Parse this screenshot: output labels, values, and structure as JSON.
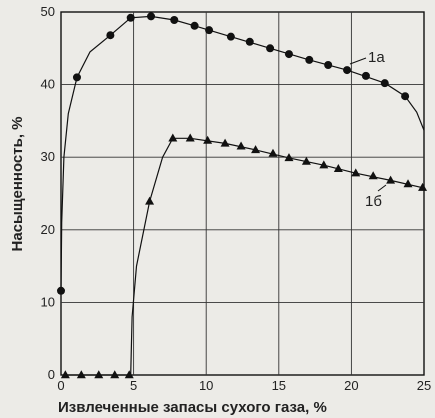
{
  "chart_data": {
    "type": "line",
    "xlabel": "Извлеченные запасы сухого газа, %",
    "ylabel": "Насыщенность, %",
    "xlim": [
      0,
      25
    ],
    "ylim": [
      0,
      50
    ],
    "x_ticks": [
      "0",
      "5",
      "10",
      "15",
      "20",
      "25"
    ],
    "y_ticks": [
      "0",
      "10",
      "20",
      "30",
      "40",
      "50"
    ],
    "grid": true,
    "series": [
      {
        "name": "1а",
        "marker": "circle",
        "points": [
          [
            0,
            11.6
          ],
          [
            1.1,
            41.0
          ],
          [
            3.4,
            46.8
          ],
          [
            4.8,
            49.2
          ],
          [
            6.2,
            49.4
          ],
          [
            7.8,
            48.9
          ],
          [
            9.2,
            48.1
          ],
          [
            10.2,
            47.5
          ],
          [
            11.7,
            46.6
          ],
          [
            13.0,
            45.9
          ],
          [
            14.4,
            45.0
          ],
          [
            15.7,
            44.2
          ],
          [
            17.1,
            43.4
          ],
          [
            18.4,
            42.7
          ],
          [
            19.7,
            42.0
          ],
          [
            21.0,
            41.2
          ],
          [
            22.3,
            40.2
          ],
          [
            23.7,
            38.4
          ]
        ],
        "curve": [
          [
            0,
            11.6
          ],
          [
            0.05,
            21
          ],
          [
            0.2,
            30
          ],
          [
            0.5,
            36
          ],
          [
            1.1,
            41.0
          ],
          [
            2.0,
            44.5
          ],
          [
            3.4,
            46.8
          ],
          [
            4.8,
            49.2
          ],
          [
            6.2,
            49.4
          ],
          [
            7.8,
            48.9
          ],
          [
            9.2,
            48.1
          ],
          [
            11.7,
            46.6
          ],
          [
            14.4,
            45.0
          ],
          [
            17.1,
            43.4
          ],
          [
            19.7,
            42.0
          ],
          [
            22.3,
            40.2
          ],
          [
            23.7,
            38.4
          ],
          [
            24.5,
            36.2
          ],
          [
            25.0,
            33.7
          ]
        ]
      },
      {
        "name": "1б",
        "marker": "triangle",
        "points": [
          [
            0.3,
            0
          ],
          [
            1.4,
            0
          ],
          [
            2.6,
            0
          ],
          [
            3.7,
            0
          ],
          [
            4.7,
            0
          ],
          [
            6.1,
            23.9
          ],
          [
            7.7,
            32.6
          ],
          [
            8.9,
            32.6
          ],
          [
            10.1,
            32.3
          ],
          [
            11.3,
            31.9
          ],
          [
            12.4,
            31.5
          ],
          [
            13.4,
            31.0
          ],
          [
            14.6,
            30.5
          ],
          [
            15.7,
            29.9
          ],
          [
            16.9,
            29.4
          ],
          [
            18.1,
            28.9
          ],
          [
            19.1,
            28.4
          ],
          [
            20.3,
            27.8
          ],
          [
            21.5,
            27.4
          ],
          [
            22.7,
            26.8
          ],
          [
            23.9,
            26.3
          ],
          [
            24.9,
            25.8
          ]
        ],
        "curve": [
          [
            0.3,
            0
          ],
          [
            4.8,
            0
          ],
          [
            4.9,
            8
          ],
          [
            5.2,
            15
          ],
          [
            6.1,
            23.9
          ],
          [
            7.0,
            30.0
          ],
          [
            7.7,
            32.6
          ],
          [
            8.9,
            32.6
          ],
          [
            11.3,
            31.9
          ],
          [
            13.4,
            31.0
          ],
          [
            15.7,
            29.9
          ],
          [
            18.1,
            28.9
          ],
          [
            20.3,
            27.8
          ],
          [
            22.7,
            26.8
          ],
          [
            24.9,
            25.8
          ]
        ]
      }
    ],
    "annotations": [
      {
        "text": "1а",
        "series": "1а"
      },
      {
        "text": "1б",
        "series": "1б"
      }
    ]
  }
}
